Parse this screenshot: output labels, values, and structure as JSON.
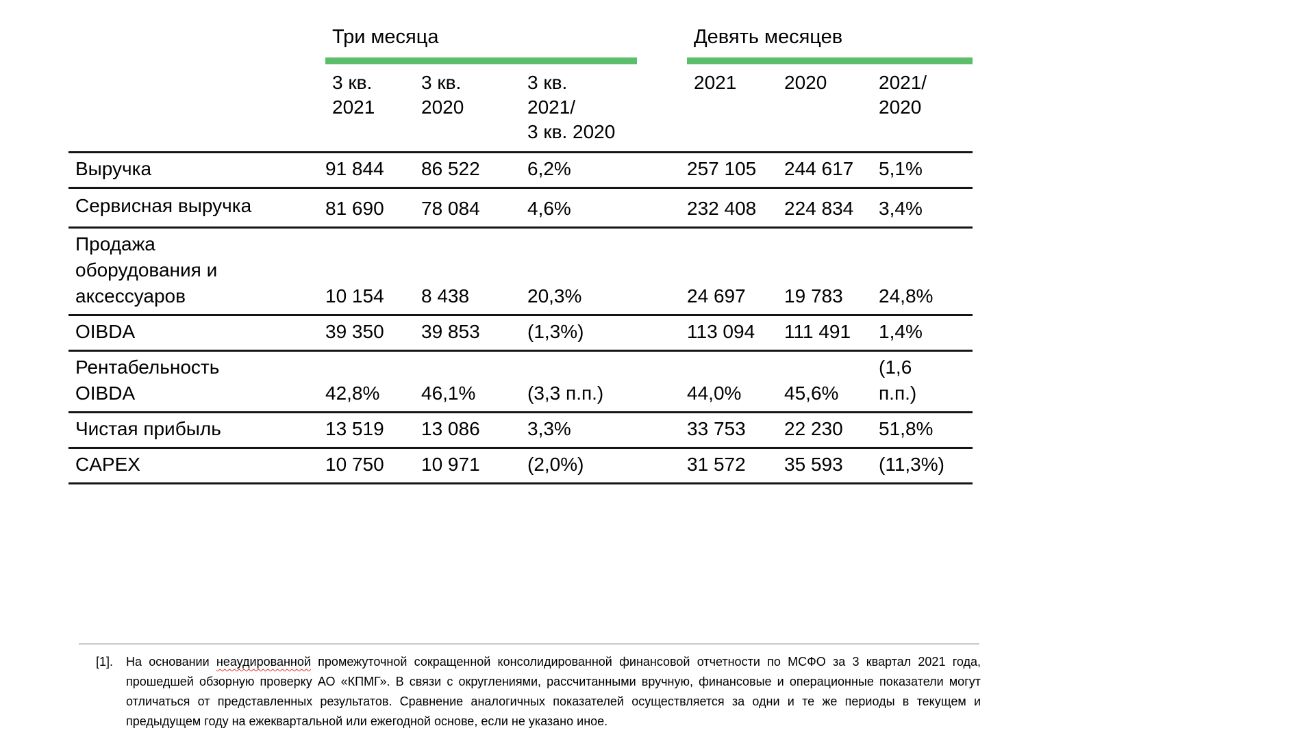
{
  "colors": {
    "accent_green": "#5cbe6a"
  },
  "table": {
    "groups": [
      {
        "title": "Три месяца"
      },
      {
        "title": "Девять месяцев"
      }
    ],
    "columns": [
      "3 кв.\n2021",
      "3 кв.\n2020",
      "3 кв.\n2021/\n3 кв. 2020",
      "2021",
      "2020",
      "2021/\n2020"
    ],
    "rows": [
      {
        "label": "Выручка",
        "values": [
          "91 844",
          "86 522",
          "6,2%",
          "257 105",
          "244 617",
          "5,1%"
        ]
      },
      {
        "label": "Сервисная выручка",
        "values": [
          "81 690",
          "78 084",
          "4,6%",
          "232 408",
          "224 834",
          "3,4%"
        ]
      },
      {
        "label": "Продажа\nоборудования и\nаксессуаров",
        "values": [
          "10 154",
          "8 438",
          "20,3%",
          "24 697",
          "19 783",
          "24,8%"
        ]
      },
      {
        "label": "OIBDA",
        "values": [
          "39 350",
          "39 853",
          "(1,3%)",
          "113 094",
          "111 491",
          "1,4%"
        ]
      },
      {
        "label": "Рентабельность\nOIBDA",
        "values": [
          "42,8%",
          "46,1%",
          "(3,3 п.п.)",
          "44,0%",
          "45,6%",
          "(1,6 п.п.)"
        ]
      },
      {
        "label": "Чистая прибыль",
        "values": [
          "13 519",
          "13 086",
          "3,3%",
          "33 753",
          "22 230",
          "51,8%"
        ]
      },
      {
        "label": "CAPEX",
        "values": [
          "10 750",
          "10 971",
          "(2,0%)",
          "31 572",
          "35 593",
          "(11,3%)"
        ]
      }
    ]
  },
  "footnote": {
    "marker": "[1].",
    "text_before": "На основании ",
    "misspelled_word": "неаудированной",
    "text_after": " промежуточной сокращенной консолидированной финансовой отчетности по МСФО за 3 квартал 2021 года, прошедшей обзорную проверку АО «КПМГ». В связи с округлениями, рассчитанными вручную, финансовые и операционные показатели могут отличаться от представленных результатов. Сравнение аналогичных показателей осуществляется за одни и те же периоды в текущем и предыдущем году на ежеквартальной или ежегодной основе, если не указано иное."
  }
}
